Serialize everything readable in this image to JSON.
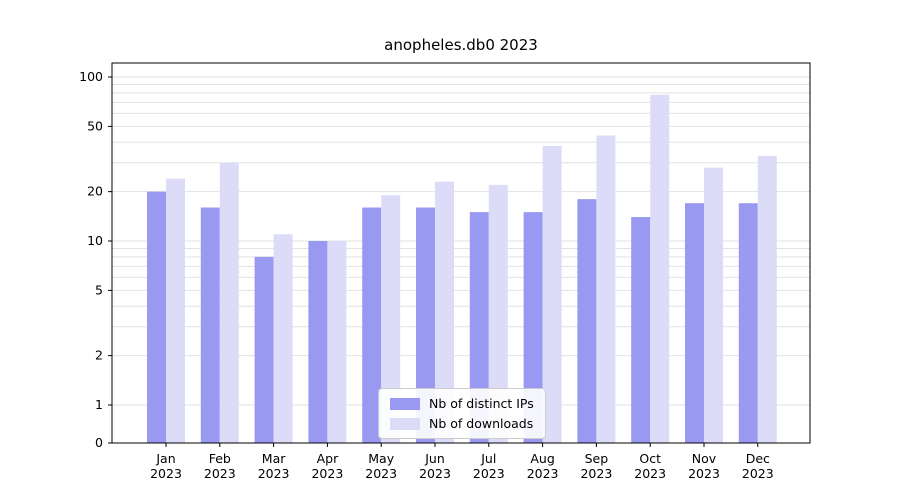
{
  "figure": {
    "background": "#ffffff"
  },
  "chart_data": {
    "type": "bar",
    "title": "anopheles.db0 2023",
    "xlabel": "",
    "ylabel": "",
    "yscale": "symlog",
    "ylim": [
      0,
      100
    ],
    "yticks": [
      0,
      1,
      2,
      5,
      10,
      20,
      50,
      100
    ],
    "gridline_values": [
      1,
      2,
      3,
      4,
      5,
      6,
      7,
      8,
      9,
      10,
      20,
      30,
      40,
      50,
      60,
      70,
      80,
      90,
      100
    ],
    "grid": "horizontal-log-minor",
    "categories": [
      "Jan 2023",
      "Feb 2023",
      "Mar 2023",
      "Apr 2023",
      "May 2023",
      "Jun 2023",
      "Jul 2023",
      "Aug 2023",
      "Sep 2023",
      "Oct 2023",
      "Nov 2023",
      "Dec 2023"
    ],
    "series": [
      {
        "name": "Nb of distinct IPs",
        "color": "#9999f1",
        "values": [
          20,
          16,
          8,
          10,
          16,
          16,
          15,
          15,
          18,
          14,
          17,
          17
        ]
      },
      {
        "name": "Nb of downloads",
        "color": "#dcdcf8",
        "values": [
          24,
          30,
          11,
          10,
          19,
          23,
          22,
          38,
          44,
          78,
          28,
          33
        ]
      }
    ],
    "legend": {
      "position": "bottom-center",
      "entries": [
        "Nb of distinct IPs",
        "Nb of downloads"
      ]
    }
  },
  "colors": {
    "grid": "#e2e2e2",
    "axis": "#000000",
    "legend_border": "#cccccc",
    "legend_bg": "#ffffff"
  }
}
